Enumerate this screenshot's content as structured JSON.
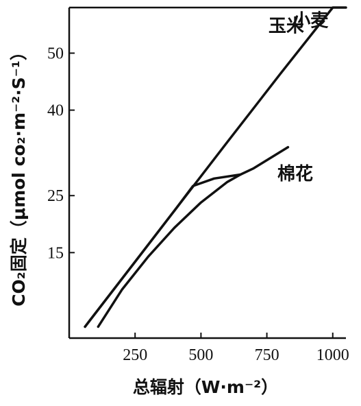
{
  "chart_data": {
    "type": "line",
    "title": "",
    "xlabel": "总辐射（W·m⁻²）",
    "ylabel": "CO₂固定（μmol co₂·m⁻²·S⁻¹）",
    "xlim": [
      0,
      1050
    ],
    "ylim": [
      0,
      58
    ],
    "x_ticks": [
      250,
      500,
      750,
      1000
    ],
    "y_ticks": [
      15,
      25,
      40,
      50
    ],
    "grid": false,
    "series": [
      {
        "name": "玉米",
        "x": [
          60,
          200,
          400,
          600,
          800,
          1000,
          1050
        ],
        "y": [
          2,
          10.4,
          22.4,
          34.4,
          46.3,
          58.3,
          61.3
        ]
      },
      {
        "name": "小麦",
        "x": [
          60,
          200,
          400,
          470,
          550,
          650
        ],
        "y": [
          2,
          10.4,
          22.4,
          26.7,
          28,
          28.7
        ]
      },
      {
        "name": "棉花",
        "x": [
          110,
          200,
          300,
          400,
          500,
          600,
          650,
          700,
          830
        ],
        "y": [
          2,
          8.5,
          14.3,
          19.4,
          23.8,
          27.4,
          28.7,
          29.8,
          33.5
        ]
      }
    ],
    "label_anchor_x": {
      "玉米": 860,
      "小麦": 900,
      "棉花": 790
    }
  }
}
